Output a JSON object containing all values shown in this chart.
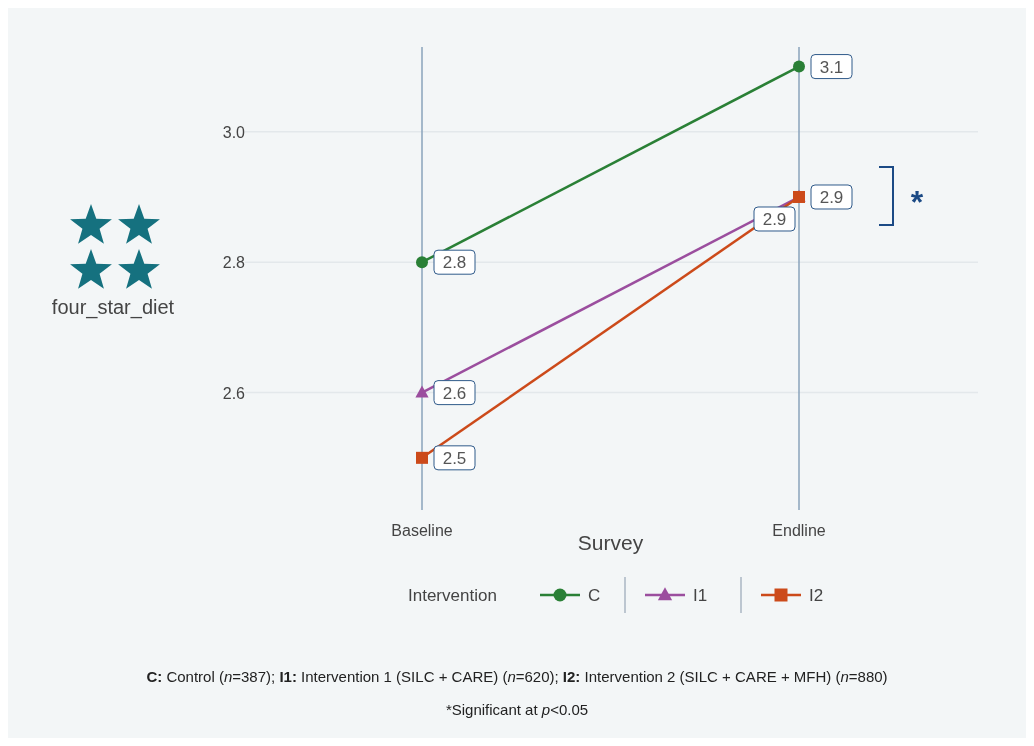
{
  "chart_data": {
    "type": "line",
    "xlabel": "Survey",
    "ylabel": "four_star_diet",
    "legend_title": "Intervention",
    "categories": [
      "Baseline",
      "Endline"
    ],
    "series": [
      {
        "name": "C",
        "color": "#2a8036",
        "values": [
          2.8,
          3.1
        ],
        "marker": "circle"
      },
      {
        "name": "I1",
        "color": "#9b4e9e",
        "values": [
          2.6,
          2.9
        ],
        "marker": "triangle"
      },
      {
        "name": "I2",
        "color": "#cc4a1a",
        "values": [
          2.5,
          2.9
        ],
        "marker": "square"
      }
    ],
    "ylim": [
      2.42,
      3.13
    ],
    "yticks": [
      {
        "value": 2.6,
        "label": "2.6"
      },
      {
        "value": 2.8,
        "label": "2.8"
      },
      {
        "value": 3.0,
        "label": "3.0"
      }
    ],
    "grid": true,
    "legend": "bottom",
    "data_labels": true,
    "line_style": "solid",
    "annotations": [
      "*",
      "C: Control (n=387); I1: Intervention 1 (SILC + CARE) (n=620); I2: Intervention 2 (SILC + CARE + MFH) (n=880)",
      "*Significant at p<0.05"
    ]
  }
}
